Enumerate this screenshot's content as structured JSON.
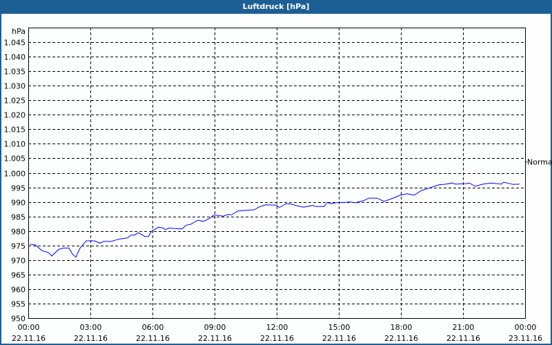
{
  "window": {
    "title": "Luftdruck [hPa]",
    "title_bg": "#1c5f95"
  },
  "chart_data": {
    "type": "line",
    "title": "Luftdruck [hPa]",
    "ylabel": "hPa",
    "ylim": [
      950,
      1050
    ],
    "yticks": [
      950,
      955,
      960,
      965,
      970,
      975,
      980,
      985,
      990,
      995,
      1000,
      1005,
      1010,
      1015,
      1020,
      1025,
      1030,
      1035,
      1040,
      1045
    ],
    "ytick_labels": [
      "950",
      "955",
      "960",
      "965",
      "970",
      "975",
      "980",
      "985",
      "990",
      "995",
      "1.000",
      "1.005",
      "1.010",
      "1.015",
      "1.020",
      "1.025",
      "1.030",
      "1.035",
      "1.040",
      "1.045"
    ],
    "xlim": [
      "22.11.16 00:00",
      "23.11.16 00:00"
    ],
    "xtick_labels": [
      {
        "time": "00:00",
        "date": "22.11.16"
      },
      {
        "time": "03:00",
        "date": "22.11.16"
      },
      {
        "time": "06:00",
        "date": "22.11.16"
      },
      {
        "time": "09:00",
        "date": "22.11.16"
      },
      {
        "time": "12:00",
        "date": "22.11.16"
      },
      {
        "time": "15:00",
        "date": "22.11.16"
      },
      {
        "time": "18:00",
        "date": "22.11.16"
      },
      {
        "time": "21:00",
        "date": "22.11.16"
      },
      {
        "time": "00:00",
        "date": "23.11.16"
      }
    ],
    "grid": true,
    "reference_line": {
      "label": "Normal",
      "value": 1004
    },
    "series": [
      {
        "color": "#0000ff",
        "date": "22.11.16",
        "x": [
          "00:05",
          "00:20",
          "00:40",
          "00:58",
          "01:08",
          "01:28",
          "01:41",
          "01:58",
          "02:08",
          "02:18",
          "02:30",
          "02:48",
          "03:11",
          "03:28",
          "03:38",
          "04:01",
          "04:11",
          "04:28",
          "04:48",
          "04:58",
          "05:08",
          "05:19",
          "05:38",
          "05:48",
          "05:58",
          "06:18",
          "06:28",
          "06:38",
          "06:48",
          "07:25",
          "07:38",
          "07:51",
          "08:11",
          "08:28",
          "08:45",
          "08:58",
          "09:25",
          "09:41",
          "09:48",
          "10:08",
          "10:55",
          "11:08",
          "11:28",
          "11:58",
          "12:08",
          "12:28",
          "12:44",
          "12:58",
          "13:18",
          "13:44",
          "13:54",
          "14:18",
          "14:26",
          "14:38",
          "14:58",
          "15:18",
          "15:31",
          "15:48",
          "16:11",
          "16:28",
          "16:51",
          "17:11",
          "17:31",
          "17:58",
          "18:18",
          "18:38",
          "18:58",
          "19:18",
          "19:38",
          "19:51",
          "20:11",
          "20:28",
          "20:38",
          "21:11",
          "21:18",
          "21:35",
          "21:58",
          "22:21",
          "22:51",
          "22:58",
          "23:25",
          "23:44"
        ],
        "y": [
          975.4,
          975.2,
          973.2,
          972.6,
          971.4,
          973.6,
          974.1,
          974.1,
          972.0,
          971.0,
          974.1,
          976.6,
          976.6,
          975.8,
          976.4,
          976.4,
          976.8,
          977.3,
          977.6,
          978.6,
          978.6,
          979.4,
          978.1,
          978.1,
          980.0,
          981.3,
          981.1,
          980.5,
          981.0,
          980.7,
          982.0,
          982.3,
          983.7,
          983.3,
          984.3,
          985.5,
          985.1,
          985.7,
          985.5,
          986.9,
          987.3,
          988.2,
          989.0,
          988.9,
          988.1,
          989.4,
          989.2,
          988.7,
          988.2,
          988.8,
          988.4,
          988.4,
          989.8,
          989.4,
          989.8,
          989.8,
          990.0,
          989.7,
          990.4,
          991.3,
          991.3,
          990.2,
          991.0,
          992.3,
          992.8,
          992.3,
          993.8,
          994.6,
          995.4,
          995.9,
          996.1,
          996.5,
          996.1,
          996.3,
          996.5,
          995.4,
          996.1,
          996.5,
          996.1,
          996.8,
          996.0,
          996.1
        ]
      }
    ]
  }
}
